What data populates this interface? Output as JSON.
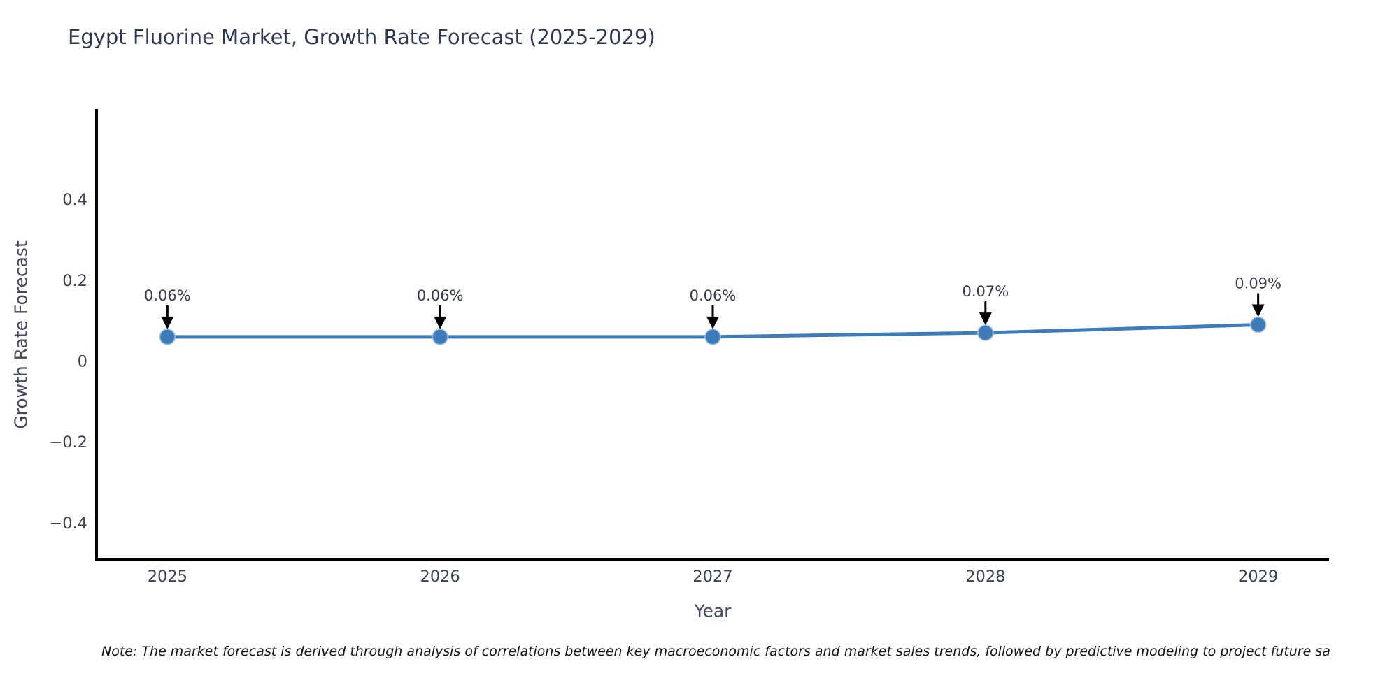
{
  "chart_data": {
    "type": "line",
    "title": "Egypt Fluorine Market, Growth Rate Forecast (2025-2029)",
    "xlabel": "Year",
    "ylabel": "Growth Rate Forecast",
    "note": "Note: The market forecast is derived through analysis of correlations between key macroeconomic factors and market sales trends, followed by predictive modeling to project future sa",
    "categories": [
      "2025",
      "2026",
      "2027",
      "2028",
      "2029"
    ],
    "x": [
      2025,
      2026,
      2027,
      2028,
      2029
    ],
    "series": [
      {
        "name": "Growth Rate Forecast",
        "values": [
          0.06,
          0.06,
          0.06,
          0.07,
          0.09
        ]
      }
    ],
    "point_labels": [
      "0.06%",
      "0.06%",
      "0.06%",
      "0.07%",
      "0.09%"
    ],
    "y_ticks": [
      {
        "value": 0.4,
        "label": "0.4"
      },
      {
        "value": 0.2,
        "label": "0.2"
      },
      {
        "value": 0,
        "label": "0"
      },
      {
        "value": -0.2,
        "label": "−0.2"
      },
      {
        "value": -0.4,
        "label": "−0.4"
      }
    ],
    "xlim": [
      2024.74,
      2029.26
    ],
    "ylim": [
      -0.49,
      0.62
    ],
    "grid": false,
    "legend": "none",
    "colors": {
      "line": "#3e7cb9",
      "marker": "#3e7cb9",
      "marker_edge": "#a9c9e5",
      "axis": "#000000",
      "title_text": "#2d3a55",
      "tick_text": "#3b4252",
      "axis_label_text": "#434b5e",
      "annotation_text": "#363d4f",
      "annotation_arrow": "#000000",
      "note_text": "#141414"
    }
  }
}
